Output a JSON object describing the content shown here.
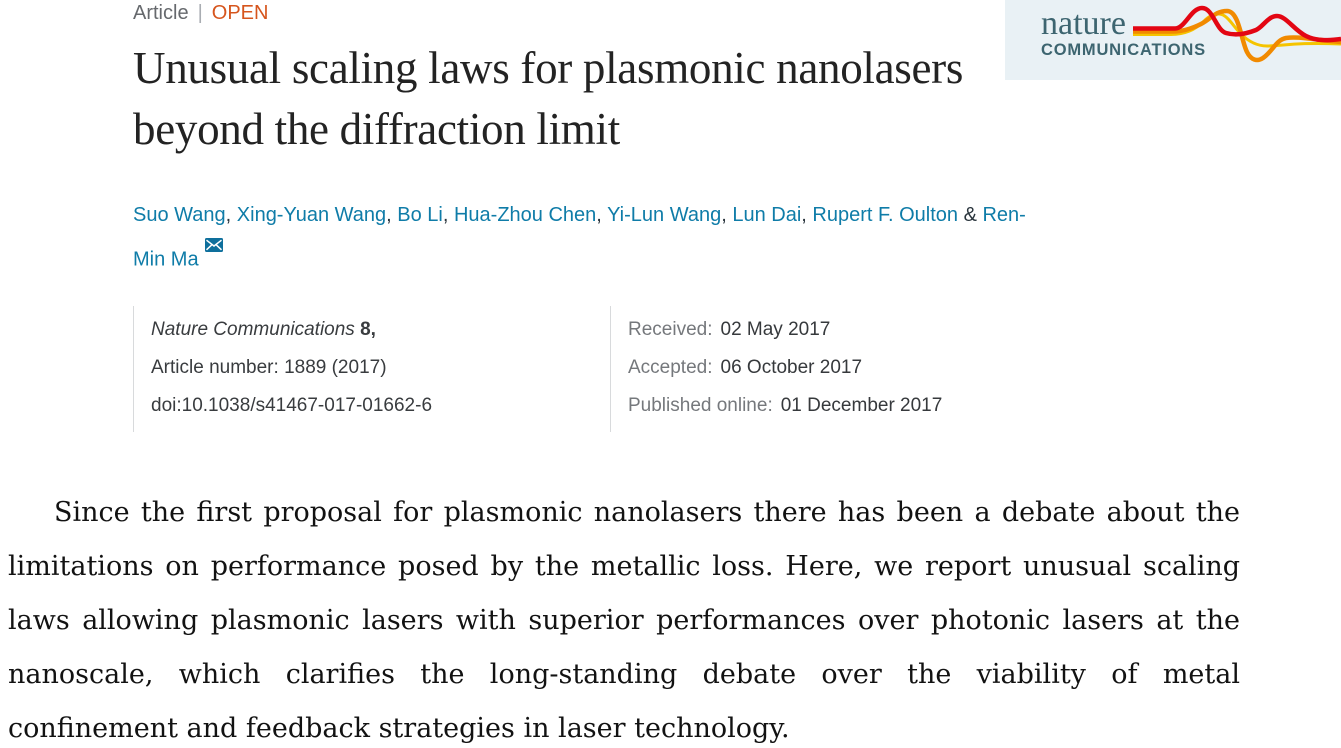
{
  "eyebrow": {
    "category": "Article",
    "separator": "|",
    "badge": "OPEN"
  },
  "title": "Unusual scaling laws for plasmonic nanolasers beyond the diffraction limit",
  "authors": {
    "names": [
      "Suo Wang",
      "Xing-Yuan Wang",
      "Bo Li",
      "Hua-Zhou Chen",
      "Yi-Lun Wang",
      "Lun Dai",
      "Rupert F. Oulton",
      "Ren-Min Ma"
    ],
    "last_separator": "&",
    "email_icon": "envelope-icon"
  },
  "citation": {
    "journal": "Nature Communications",
    "volume": "8,",
    "article_number_label": "Article number:",
    "article_number_value": "1889 (2017)",
    "doi": "doi:10.1038/s41467-017-01662-6"
  },
  "dates": [
    {
      "label": "Received:",
      "value": "02 May 2017"
    },
    {
      "label": "Accepted:",
      "value": "06 October 2017"
    },
    {
      "label": "Published online:",
      "value": "01 December 2017"
    }
  ],
  "logo": {
    "brand": "nature",
    "brand_sub": "COMMUNICATIONS"
  },
  "abstract": "Since the first proposal for plasmonic nanolasers there has been a debate about the limitations on performance posed by the metallic loss. Here, we report unusual scaling laws allowing plasmonic lasers with superior performances over photonic lasers at the nanoscale, which clarifies the long-standing debate over the viability of metal confinement and feedback strategies in laser technology.",
  "colors": {
    "link_blue": "#0f7ca8",
    "open_badge_orange": "#d6551d",
    "logo_teal": "#3d6570",
    "logo_background": "#e9f1f5",
    "wave_red": "#e30613",
    "wave_orange": "#f18a00",
    "wave_yellow": "#f5c400",
    "envelope_blue": "#0e6f9c"
  }
}
